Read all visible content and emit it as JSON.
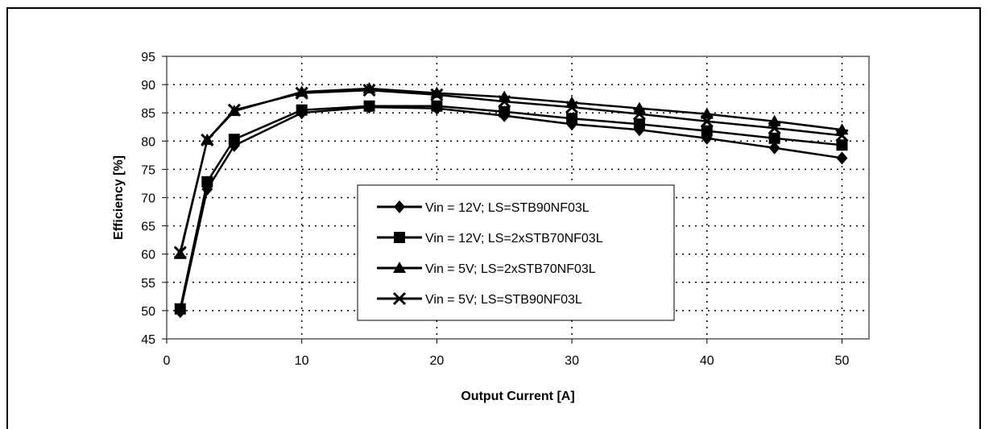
{
  "chart_data": {
    "type": "line",
    "xlabel": "Output Current [A]",
    "ylabel": "Efficiency [%]",
    "xlim": [
      0,
      52
    ],
    "ylim": [
      45,
      95
    ],
    "xticks": [
      0,
      10,
      20,
      30,
      40,
      50
    ],
    "yticks": [
      45,
      50,
      55,
      60,
      65,
      70,
      75,
      80,
      85,
      90,
      95
    ],
    "grid": true,
    "legend_position": "lower-center",
    "colors": {
      "line": "#000000",
      "grid": "#000000",
      "plot_border": "#808080"
    },
    "series": [
      {
        "name": "Vin = 12V; LS=STB90NF03L",
        "marker": "diamond",
        "x": [
          1,
          3,
          5,
          10,
          15,
          20,
          25,
          30,
          35,
          40,
          45,
          50
        ],
        "y": [
          49.8,
          71.5,
          79.2,
          85,
          86,
          85.8,
          84.5,
          83,
          82,
          80.5,
          78.8,
          77
        ]
      },
      {
        "name": "Vin = 12V; LS=2xSTB70NF03L",
        "marker": "square",
        "x": [
          1,
          3,
          5,
          10,
          15,
          20,
          25,
          30,
          35,
          40,
          45,
          50
        ],
        "y": [
          50.3,
          72.8,
          80.3,
          85.5,
          86.2,
          86.2,
          85.2,
          84,
          83,
          81.8,
          80.5,
          79.3
        ]
      },
      {
        "name": "Vin = 5V; LS=2xSTB70NF03L",
        "marker": "triangle",
        "x": [
          1,
          3,
          5,
          10,
          15,
          20,
          25,
          30,
          35,
          40,
          45,
          50
        ],
        "y": [
          60,
          80.2,
          85.3,
          88.7,
          89.3,
          88.5,
          87.8,
          86.8,
          85.8,
          84.8,
          83.5,
          82
        ]
      },
      {
        "name": "Vin = 5V; LS=STB90NF03L",
        "marker": "x",
        "x": [
          1,
          3,
          5,
          10,
          15,
          20,
          25,
          30,
          35,
          40,
          45,
          50
        ],
        "y": [
          60.3,
          80.2,
          85.5,
          88.5,
          89,
          88.2,
          87,
          86,
          84.8,
          83.5,
          82.3,
          81
        ]
      }
    ]
  }
}
